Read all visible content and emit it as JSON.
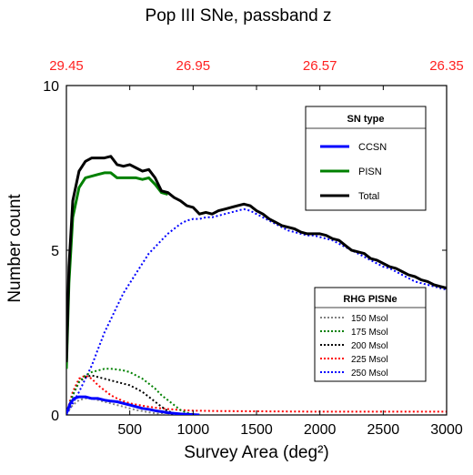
{
  "chart_data": {
    "type": "line",
    "title": "Pop III SNe, passband z",
    "xlabel": "Survey Area (deg²)",
    "ylabel": "Number count",
    "xlim": [
      0,
      3000
    ],
    "ylim": [
      0,
      10
    ],
    "x_ticks": [
      500,
      1000,
      1500,
      2000,
      2500,
      3000
    ],
    "y_ticks": [
      0,
      5,
      10
    ],
    "top_axis": {
      "tick_labels": [
        "29.45",
        "26.95",
        "26.57",
        "26.35"
      ],
      "tick_x": [
        0,
        1000,
        2000,
        3000
      ],
      "color": "#ff2020"
    },
    "grid": false,
    "legends": [
      {
        "title": "SN type",
        "placement": "upper right",
        "entries": [
          {
            "label": "CCSN",
            "color": "#0000ff",
            "style": "solid"
          },
          {
            "label": "PISN",
            "color": "#008000",
            "style": "solid"
          },
          {
            "label": "Total",
            "color": "#000000",
            "style": "solid"
          }
        ]
      },
      {
        "title": "RHG PISNe",
        "placement": "lower right",
        "entries": [
          {
            "label": "150 Msol",
            "color": "#808080",
            "style": "dotted"
          },
          {
            "label": "175 Msol",
            "color": "#008000",
            "style": "dotted"
          },
          {
            "label": "200 Msol",
            "color": "#000000",
            "style": "dotted"
          },
          {
            "label": "225 Msol",
            "color": "#ff0000",
            "style": "dotted"
          },
          {
            "label": "250 Msol",
            "color": "#0000ff",
            "style": "dotted"
          }
        ]
      }
    ],
    "series": [
      {
        "name": "Total",
        "color": "#000000",
        "style": "solid",
        "x": [
          0,
          20,
          50,
          100,
          150,
          200,
          250,
          300,
          350,
          400,
          450,
          500,
          550,
          600,
          650,
          700,
          750,
          800,
          850,
          900,
          950,
          1000,
          1050,
          1100,
          1150,
          1200,
          1250,
          1300,
          1350,
          1400,
          1450,
          1500,
          1550,
          1600,
          1650,
          1700,
          1750,
          1800,
          1850,
          1900,
          1950,
          2000,
          2050,
          2100,
          2150,
          2200,
          2250,
          2300,
          2350,
          2400,
          2450,
          2500,
          2550,
          2600,
          2650,
          2700,
          2750,
          2800,
          2850,
          2900,
          2950,
          3000
        ],
        "y": [
          1.6,
          4.5,
          6.5,
          7.4,
          7.7,
          7.8,
          7.8,
          7.8,
          7.85,
          7.6,
          7.55,
          7.6,
          7.5,
          7.4,
          7.45,
          7.2,
          6.8,
          6.75,
          6.6,
          6.5,
          6.35,
          6.3,
          6.1,
          6.15,
          6.1,
          6.2,
          6.25,
          6.3,
          6.35,
          6.4,
          6.35,
          6.2,
          6.1,
          5.95,
          5.85,
          5.75,
          5.7,
          5.65,
          5.55,
          5.5,
          5.5,
          5.5,
          5.45,
          5.35,
          5.3,
          5.15,
          5.0,
          4.95,
          4.9,
          4.75,
          4.7,
          4.6,
          4.5,
          4.45,
          4.35,
          4.25,
          4.2,
          4.1,
          4.05,
          3.95,
          3.9,
          3.85
        ]
      },
      {
        "name": "PISN",
        "color": "#008000",
        "style": "solid",
        "x": [
          0,
          20,
          50,
          100,
          150,
          200,
          250,
          300,
          350,
          400,
          450,
          500,
          550,
          600,
          650,
          700,
          750,
          800
        ],
        "y": [
          1.4,
          4.0,
          6.0,
          6.9,
          7.2,
          7.25,
          7.3,
          7.35,
          7.35,
          7.2,
          7.2,
          7.2,
          7.2,
          7.15,
          7.2,
          7.0,
          6.75,
          6.7
        ]
      },
      {
        "name": "CCSN",
        "color": "#0000ff",
        "style": "solid",
        "x": [
          0,
          30,
          60,
          100,
          150,
          200,
          250,
          300,
          350,
          400,
          450,
          500,
          550,
          600,
          650,
          700,
          750,
          800,
          850,
          900,
          950,
          1000,
          1050
        ],
        "y": [
          0.05,
          0.35,
          0.5,
          0.55,
          0.55,
          0.5,
          0.5,
          0.45,
          0.42,
          0.4,
          0.35,
          0.3,
          0.25,
          0.2,
          0.17,
          0.13,
          0.1,
          0.07,
          0.05,
          0.03,
          0.02,
          0.01,
          0.0
        ]
      },
      {
        "name": "150 Msol",
        "color": "#808080",
        "style": "dotted",
        "x": [
          0,
          50,
          100,
          150,
          200,
          250,
          300,
          350,
          400,
          450,
          500,
          550,
          600,
          650,
          700,
          750,
          800,
          850,
          900,
          950,
          1000,
          1050
        ],
        "y": [
          0.05,
          0.3,
          0.45,
          0.5,
          0.5,
          0.45,
          0.4,
          0.35,
          0.3,
          0.25,
          0.2,
          0.15,
          0.12,
          0.08,
          0.05,
          0.03,
          0.02,
          0.01,
          0.0,
          0.0,
          0.0,
          0.0
        ]
      },
      {
        "name": "175 Msol",
        "color": "#008000",
        "style": "dotted",
        "x": [
          0,
          50,
          100,
          150,
          200,
          250,
          300,
          350,
          400,
          450,
          500,
          550,
          600,
          650,
          700,
          750,
          800,
          850,
          900,
          950,
          1000,
          1050
        ],
        "y": [
          0.05,
          0.6,
          1.0,
          1.2,
          1.3,
          1.35,
          1.4,
          1.4,
          1.38,
          1.35,
          1.3,
          1.2,
          1.1,
          0.95,
          0.8,
          0.6,
          0.45,
          0.3,
          0.15,
          0.07,
          0.02,
          0.0
        ]
      },
      {
        "name": "200 Msol",
        "color": "#000000",
        "style": "dotted",
        "x": [
          0,
          50,
          100,
          150,
          200,
          250,
          300,
          350,
          400,
          450,
          500,
          550,
          600,
          650,
          700,
          750,
          800,
          850,
          900,
          950
        ],
        "y": [
          0.05,
          0.6,
          1.0,
          1.15,
          1.2,
          1.15,
          1.1,
          1.05,
          1.0,
          0.95,
          0.9,
          0.8,
          0.7,
          0.55,
          0.4,
          0.25,
          0.12,
          0.05,
          0.01,
          0.0
        ]
      },
      {
        "name": "225 Msol",
        "color": "#ff0000",
        "style": "dotted",
        "x": [
          0,
          50,
          100,
          150,
          200,
          250,
          300,
          350,
          400,
          450,
          500,
          600,
          700,
          800,
          900,
          1000,
          1200,
          1500,
          2000,
          2500,
          3000
        ],
        "y": [
          0.05,
          0.7,
          1.1,
          1.2,
          1.1,
          0.9,
          0.75,
          0.6,
          0.5,
          0.42,
          0.35,
          0.28,
          0.22,
          0.18,
          0.15,
          0.13,
          0.12,
          0.11,
          0.1,
          0.1,
          0.1
        ]
      },
      {
        "name": "250 Msol",
        "color": "#0000ff",
        "style": "dotted",
        "x": [
          0,
          50,
          100,
          150,
          200,
          250,
          300,
          350,
          400,
          450,
          500,
          550,
          600,
          650,
          700,
          750,
          800,
          850,
          900,
          950,
          1000,
          1050,
          1100,
          1150,
          1200,
          1250,
          1300,
          1350,
          1400,
          1450,
          1500,
          1550,
          1600,
          1650,
          1700,
          1750,
          1800,
          1850,
          1900,
          1950,
          2000,
          2050,
          2100,
          2150,
          2200,
          2250,
          2300,
          2350,
          2400,
          2450,
          2500,
          2550,
          2600,
          2650,
          2700,
          2750,
          2800,
          2850,
          2900,
          2950,
          3000
        ],
        "y": [
          0.0,
          0.35,
          0.7,
          1.1,
          1.5,
          2.0,
          2.5,
          2.9,
          3.3,
          3.7,
          4.0,
          4.3,
          4.6,
          4.9,
          5.1,
          5.3,
          5.5,
          5.65,
          5.8,
          5.9,
          5.95,
          5.95,
          6.0,
          6.0,
          6.05,
          6.1,
          6.15,
          6.2,
          6.25,
          6.2,
          6.1,
          6.0,
          5.9,
          5.8,
          5.7,
          5.6,
          5.55,
          5.5,
          5.45,
          5.45,
          5.4,
          5.35,
          5.3,
          5.2,
          5.1,
          5.0,
          4.9,
          4.8,
          4.7,
          4.6,
          4.5,
          4.45,
          4.35,
          4.25,
          4.15,
          4.05,
          4.0,
          3.95,
          3.9,
          3.85,
          3.8
        ]
      }
    ]
  }
}
